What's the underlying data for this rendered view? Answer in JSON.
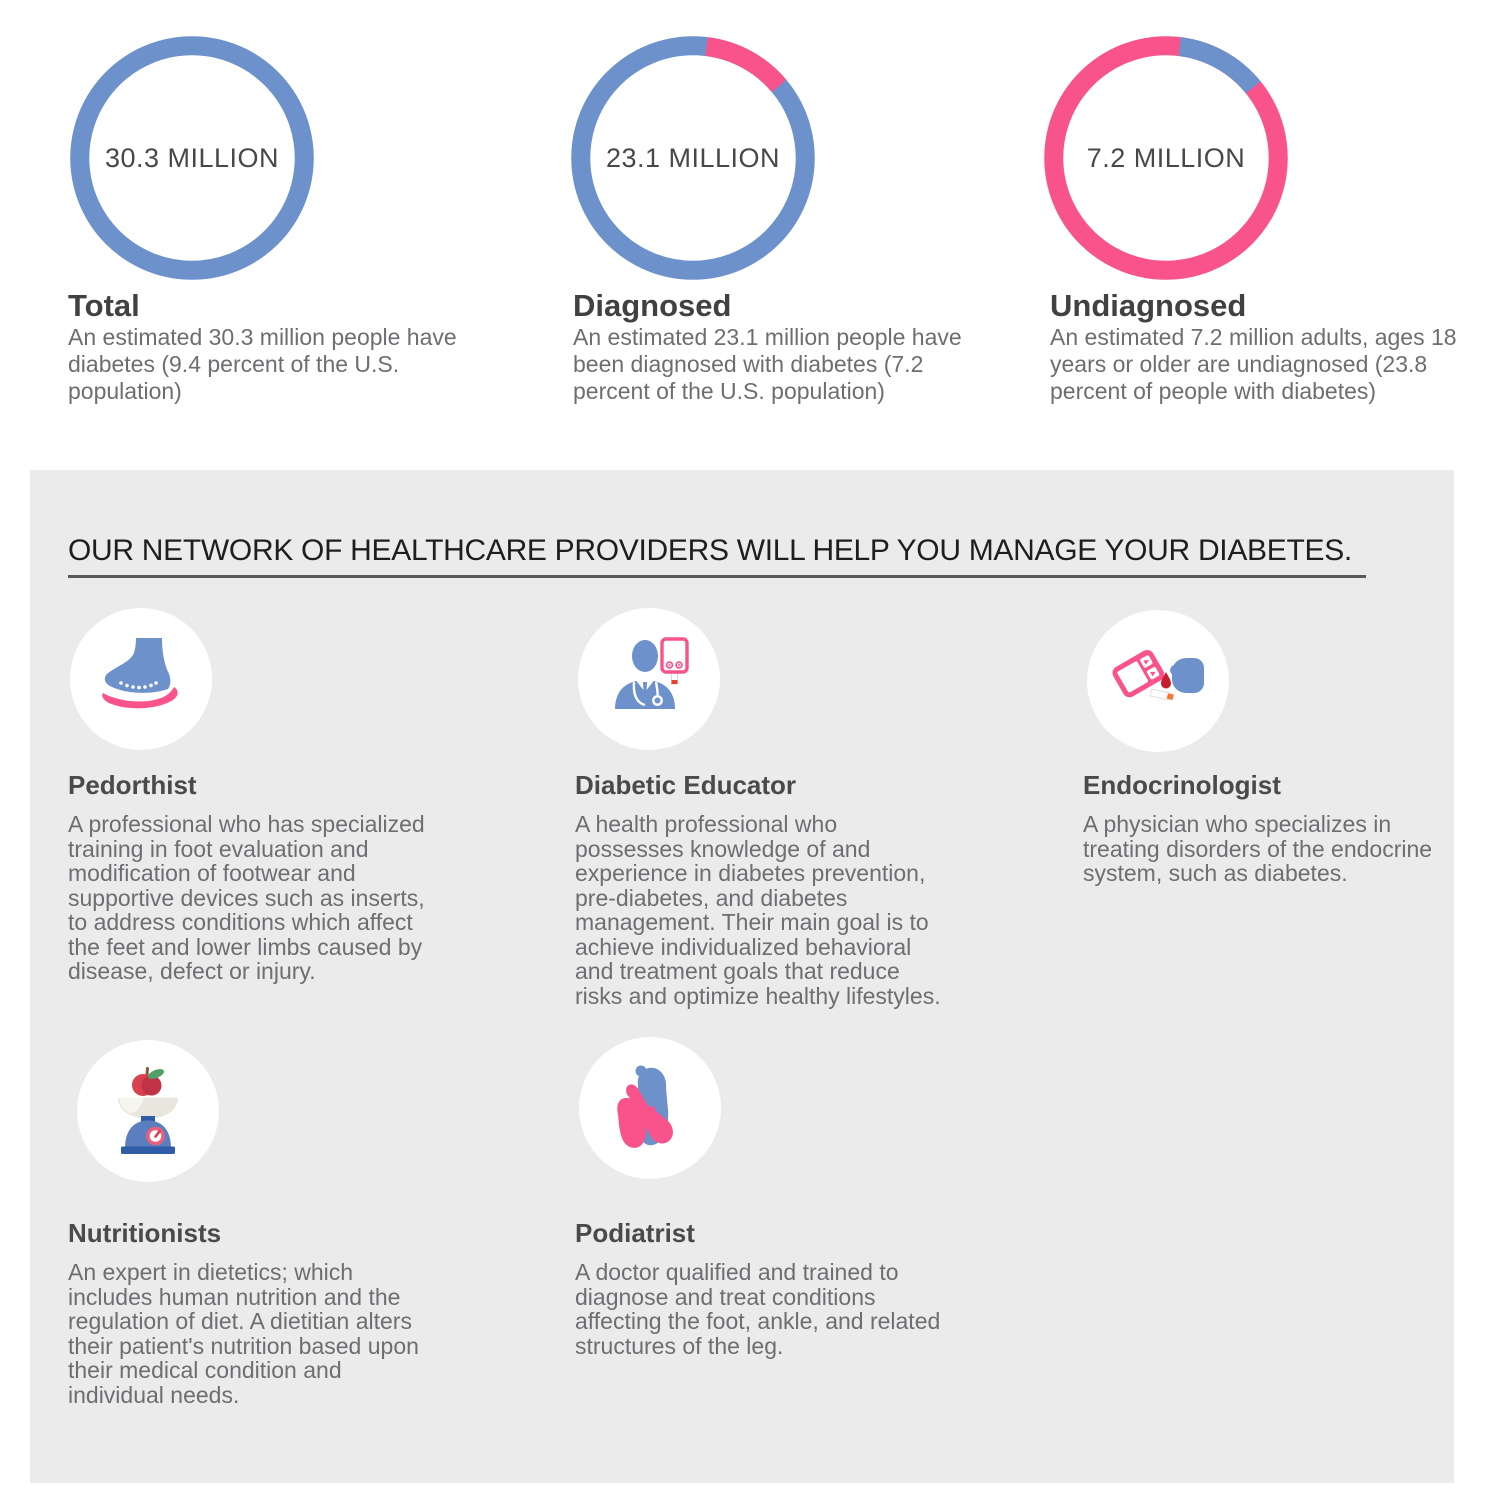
{
  "colors": {
    "blue": "#6C91CB",
    "pink": "#F9538C",
    "panel": "#EBEBEB",
    "heading": "#414042",
    "providerHeading": "#4A4A4C",
    "body": "#6D6E71",
    "statLabel": "#48484A",
    "sectionHeading": "#1E1E1E",
    "underline": "#58595B",
    "bloodRed": "#C5202E",
    "tipRed": "#E8432F",
    "tipOrange": "#F2762E",
    "appleRed": "#D8414E",
    "appleRedDark": "#C13247",
    "leafGreen": "#4FA167",
    "stemBrown": "#8A5A3B",
    "scaleBlue": "#5B7FBE",
    "scaleNavy": "#2F5DA8",
    "bowlIvory": "#E9E7DD",
    "dialPink": "#EE5E78",
    "needleRed": "#D93A4E",
    "iconCircle": "#FFFFFF"
  },
  "stats": [
    {
      "id": "total",
      "center_label": "30.3 MILLION",
      "title": "Total",
      "description_lines": [
        "An estimated 30.3 million people have",
        "diabetes (9.4 percent of the U.S.",
        "population)"
      ]
    },
    {
      "id": "diagnosed",
      "center_label": "23.1 MILLION",
      "title": "Diagnosed",
      "description_lines": [
        "An estimated 23.1 million people have",
        "been diagnosed with diabetes (7.2",
        "percent of the U.S. population)"
      ]
    },
    {
      "id": "undiagnosed",
      "center_label": "7.2 MILLION",
      "title": "Undiagnosed",
      "description_lines": [
        "An estimated 7.2 million adults, ages 18",
        "years or older are undiagnosed (23.8",
        "percent of people with diabetes)"
      ]
    }
  ],
  "chart_data": [
    {
      "type": "pie",
      "variant": "donut",
      "title": "Total",
      "center_label": "30.3 MILLION",
      "value_millions": 30.3,
      "percent_note": "9.4 percent of the U.S. population",
      "ring": {
        "base_color": "#6C91CB",
        "segment_color": null,
        "segment_start_deg": 0,
        "segment_sweep_deg": 0
      }
    },
    {
      "type": "pie",
      "variant": "donut",
      "title": "Diagnosed",
      "center_label": "23.1 MILLION",
      "value_millions": 23.1,
      "percent_note": "7.2 percent of the U.S. population",
      "ring": {
        "base_color": "#6C91CB",
        "segment_color": "#F9538C",
        "segment_start_deg": 7,
        "segment_sweep_deg": 43
      }
    },
    {
      "type": "pie",
      "variant": "donut",
      "title": "Undiagnosed",
      "center_label": "7.2 MILLION",
      "value_millions": 7.2,
      "percent_note": "23.8 percent of people with diabetes",
      "ring": {
        "base_color": "#F9538C",
        "segment_color": "#6C91CB",
        "segment_start_deg": 7,
        "segment_sweep_deg": 44
      }
    }
  ],
  "network": {
    "heading": "OUR NETWORK OF HEALTHCARE PROVIDERS WILL HELP YOU MANAGE YOUR DIABETES.",
    "providers": [
      {
        "name": "Pedorthist",
        "icon": "foot-insole-icon",
        "description_lines": [
          "A professional who has specialized",
          "training in foot evaluation and",
          "modification of footwear and",
          "supportive devices such as inserts,",
          "to address conditions which affect",
          "the feet and lower limbs caused by",
          "disease, defect or injury."
        ]
      },
      {
        "name": "Diabetic Educator",
        "icon": "doctor-glucometer-icon",
        "description_lines": [
          "A health professional who",
          "possesses knowledge of and",
          "experience in diabetes prevention,",
          "pre-diabetes, and diabetes",
          "management. Their main goal is to",
          "achieve individualized behavioral",
          "and treatment goals that reduce",
          "risks and optimize healthy lifestyles."
        ]
      },
      {
        "name": "Endocrinologist",
        "icon": "glucometer-finger-icon",
        "description_lines": [
          "A physician who specializes in",
          "treating disorders of the endocrine",
          "system, such as diabetes."
        ]
      },
      {
        "name": "Nutritionists",
        "icon": "food-scale-icon",
        "description_lines": [
          "An expert in dietetics; which",
          "includes human nutrition and the",
          "regulation of diet. A dietitian alters",
          "their patient's nutrition based upon",
          "their medical condition and",
          "individual needs."
        ]
      },
      {
        "name": "Podiatrist",
        "icon": "foot-massage-hands-icon",
        "description_lines": [
          "A doctor qualified and trained to",
          "diagnose and treat conditions",
          "affecting the foot, ankle, and related",
          "structures of the leg."
        ]
      }
    ]
  }
}
